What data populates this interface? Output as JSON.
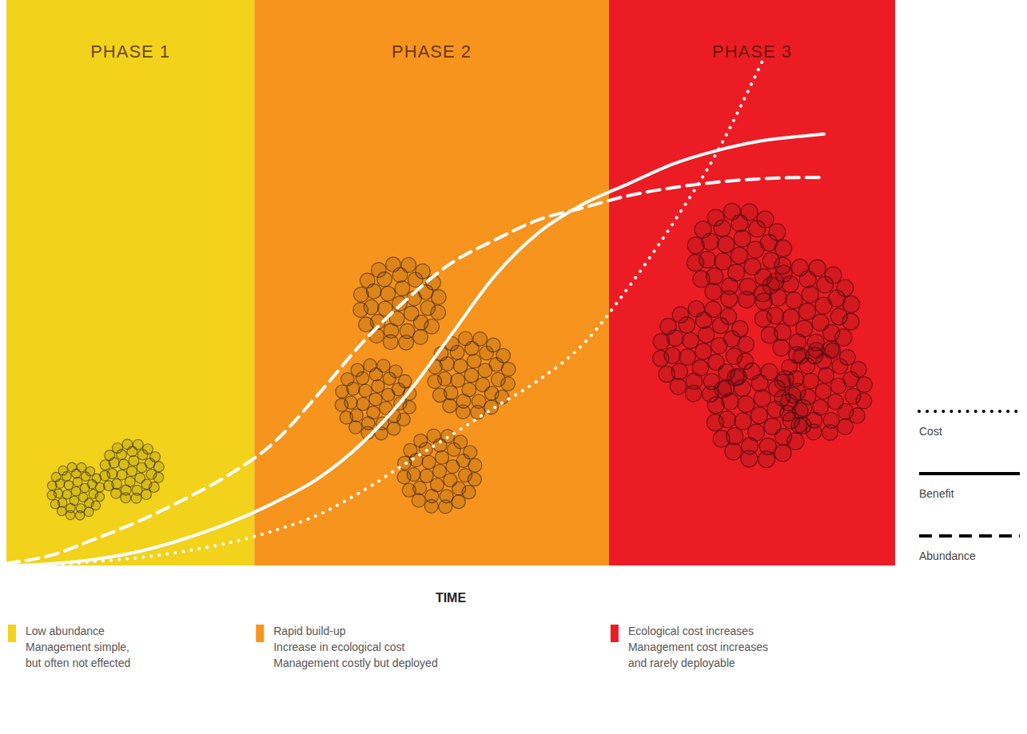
{
  "chart_data": {
    "type": "line",
    "xlabel": "TIME",
    "xlim": [
      0,
      100
    ],
    "ylim": [
      0,
      100
    ],
    "tick_labels": false,
    "legend": "right",
    "x": [
      0,
      5,
      10,
      15,
      20,
      25,
      30,
      35,
      40,
      45,
      50,
      55,
      60,
      65,
      70,
      75,
      80,
      85,
      90,
      92
    ],
    "phases": [
      {
        "label": "PHASE 1",
        "start": 0,
        "end": 27.9,
        "color": "#f2d21b",
        "description": [
          "Low abundance",
          "Management simple,",
          "but often not effected"
        ]
      },
      {
        "label": "PHASE 2",
        "start": 27.9,
        "end": 67.8,
        "color": "#f7941d",
        "description": [
          "Rapid build-up",
          "Increase in ecological cost",
          "Management costly but deployed"
        ]
      },
      {
        "label": "PHASE 3",
        "start": 67.8,
        "end": 100,
        "color": "#ec1c24",
        "description": [
          "Ecological cost increases",
          "Management cost increases",
          "and rarely deployable"
        ]
      }
    ],
    "series": [
      {
        "name": "Cost",
        "line_style": "dotted",
        "color": "#ffffff",
        "values": [
          0,
          0.1,
          0.7,
          1.4,
          2.5,
          4.0,
          6.1,
          8.9,
          13.1,
          18.1,
          23.0,
          28.0,
          32.9,
          39.3,
          49.2,
          60.5,
          73.2,
          89.0,
          null,
          null
        ]
      },
      {
        "name": "Benefit",
        "line_style": "solid",
        "color": "#ffffff",
        "values": [
          0,
          0.3,
          1.1,
          2.5,
          4.7,
          7.5,
          11.0,
          15.3,
          21.6,
          30.1,
          40.7,
          51.3,
          59.0,
          64.0,
          67.5,
          71.0,
          73.4,
          75.1,
          76.0,
          76.3
        ]
      },
      {
        "name": "Abundance",
        "line_style": "dashed",
        "color": "#ffffff",
        "values": [
          0.4,
          1.8,
          4.7,
          7.9,
          11.7,
          16.0,
          21.6,
          30.1,
          39.3,
          47.0,
          53.4,
          57.6,
          61.2,
          63.3,
          65.4,
          66.8,
          67.8,
          68.4,
          68.6,
          68.6
        ]
      }
    ]
  }
}
